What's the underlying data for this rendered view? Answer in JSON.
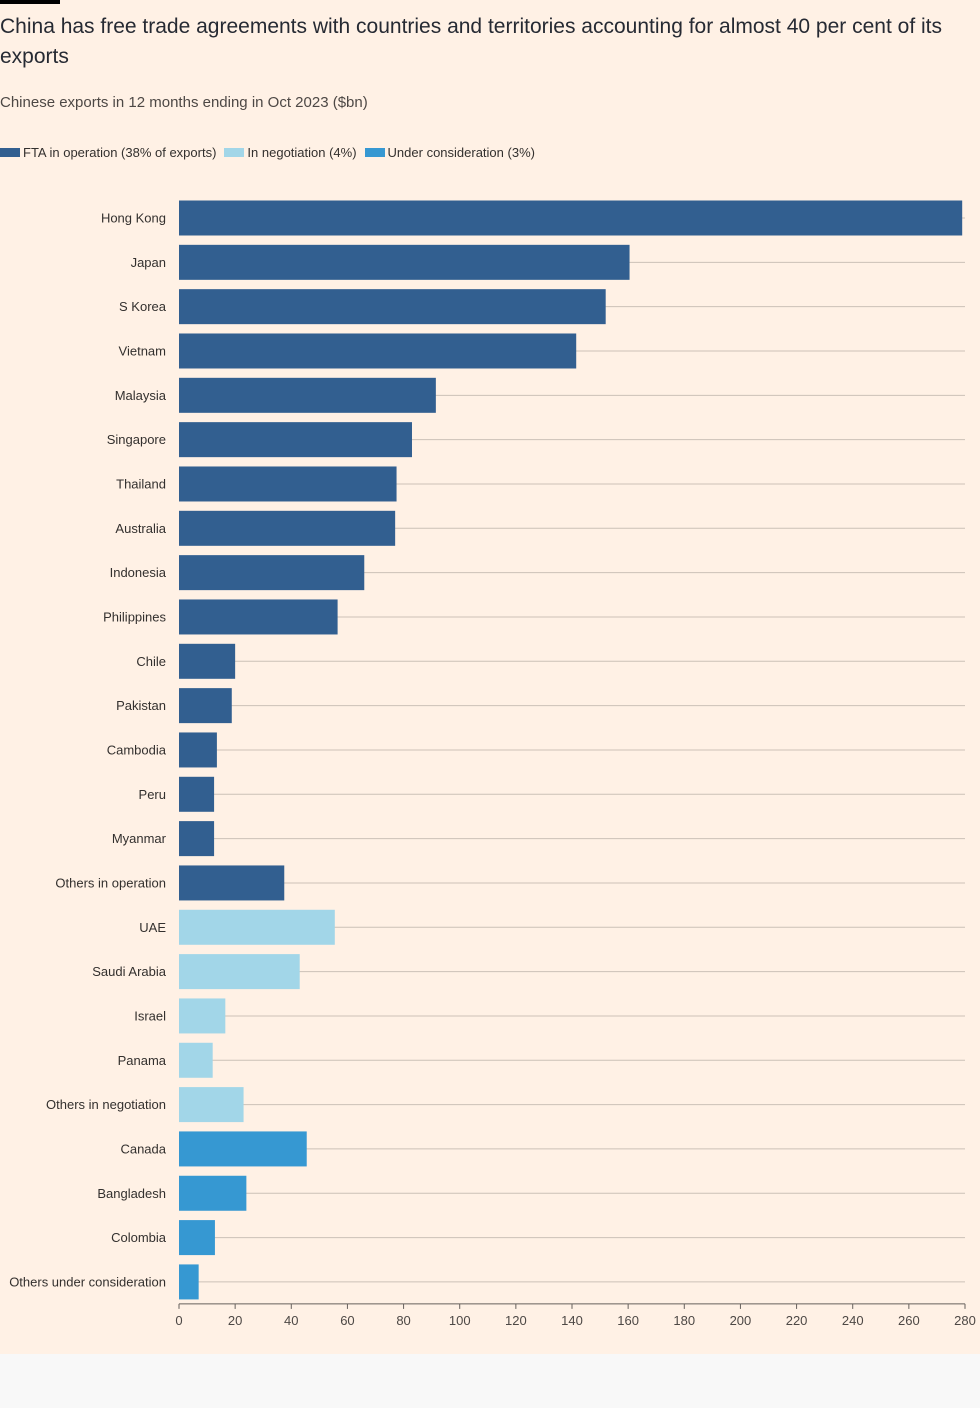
{
  "chart_data": {
    "type": "bar",
    "orientation": "horizontal",
    "title": "China has free trade agreements with countries and territories accounting for almost 40 per cent of its exports",
    "subtitle": "Chinese exports in 12 months ending in Oct 2023 ($bn)",
    "legend_position": "top-left",
    "grid": true,
    "xlim": [
      0,
      280
    ],
    "x_ticks": [
      0,
      20,
      40,
      60,
      80,
      100,
      120,
      140,
      160,
      180,
      200,
      220,
      240,
      260,
      280
    ],
    "legend": [
      {
        "key": "fta",
        "label": "FTA in operation (38% of exports)",
        "color": "#325f90"
      },
      {
        "key": "negotiation",
        "label": "In negotiation (4%)",
        "color": "#a2d6e8"
      },
      {
        "key": "consideration",
        "label": "Under consideration (3%)",
        "color": "#3698d2"
      }
    ],
    "categories": [
      "Hong Kong",
      "Japan",
      "S Korea",
      "Vietnam",
      "Malaysia",
      "Singapore",
      "Thailand",
      "Australia",
      "Indonesia",
      "Philippines",
      "Chile",
      "Pakistan",
      "Cambodia",
      "Peru",
      "Myanmar",
      "Others in operation",
      "UAE",
      "Saudi Arabia",
      "Israel",
      "Panama",
      "Others in negotiation",
      "Canada",
      "Bangladesh",
      "Colombia",
      "Others under consideration"
    ],
    "values": [
      279,
      160.5,
      152,
      141.5,
      91.5,
      83,
      77.5,
      77,
      66,
      56.5,
      20,
      18.8,
      13.5,
      12.5,
      12.5,
      37.5,
      55.5,
      43,
      16.5,
      12,
      23,
      45.5,
      24,
      12.8,
      7
    ],
    "groups": [
      "fta",
      "fta",
      "fta",
      "fta",
      "fta",
      "fta",
      "fta",
      "fta",
      "fta",
      "fta",
      "fta",
      "fta",
      "fta",
      "fta",
      "fta",
      "fta",
      "negotiation",
      "negotiation",
      "negotiation",
      "negotiation",
      "negotiation",
      "consideration",
      "consideration",
      "consideration",
      "consideration"
    ]
  }
}
